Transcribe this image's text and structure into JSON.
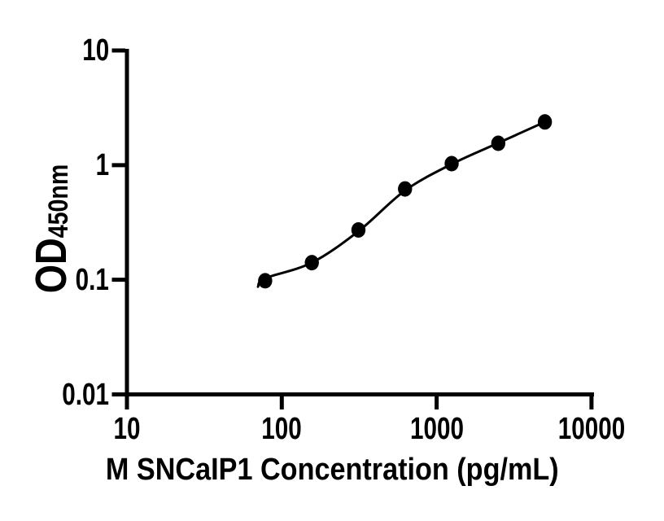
{
  "figure": {
    "background_color": "#ffffff",
    "foreground_color": "#000000"
  },
  "chart_data": {
    "type": "scatter",
    "title": "",
    "xlabel": "M SNCaIP1 Concentration (pg/mL)",
    "ylabel_main": "OD",
    "ylabel_sub": "450nm",
    "x_scale": "log",
    "y_scale": "log",
    "xlim": [
      10,
      10000
    ],
    "ylim": [
      0.01,
      10
    ],
    "grid": false,
    "legend": null,
    "x_ticks": [
      {
        "value": 10,
        "label": "10"
      },
      {
        "value": 100,
        "label": "100"
      },
      {
        "value": 1000,
        "label": "1000"
      },
      {
        "value": 10000,
        "label": "10000"
      }
    ],
    "y_ticks": [
      {
        "value": 10,
        "label": "10"
      },
      {
        "value": 1,
        "label": "1"
      },
      {
        "value": 0.1,
        "label": "0.1"
      },
      {
        "value": 0.01,
        "label": "0.01"
      }
    ],
    "marker": "filled-circle",
    "marker_color": "#000000",
    "line_color": "#000000",
    "points": [
      {
        "x": 78.1,
        "y": 0.098
      },
      {
        "x": 156.3,
        "y": 0.141
      },
      {
        "x": 312.5,
        "y": 0.272
      },
      {
        "x": 625,
        "y": 0.62
      },
      {
        "x": 1250,
        "y": 1.03
      },
      {
        "x": 2500,
        "y": 1.55
      },
      {
        "x": 5000,
        "y": 2.38
      }
    ],
    "fit_curve": [
      {
        "x": 70.2,
        "y": 0.087
      },
      {
        "x": 78.1,
        "y": 0.103
      },
      {
        "x": 156.3,
        "y": 0.141
      },
      {
        "x": 312.5,
        "y": 0.265
      },
      {
        "x": 625,
        "y": 0.6
      },
      {
        "x": 1250,
        "y": 1.02
      },
      {
        "x": 2500,
        "y": 1.56
      },
      {
        "x": 5000,
        "y": 2.38
      }
    ]
  }
}
